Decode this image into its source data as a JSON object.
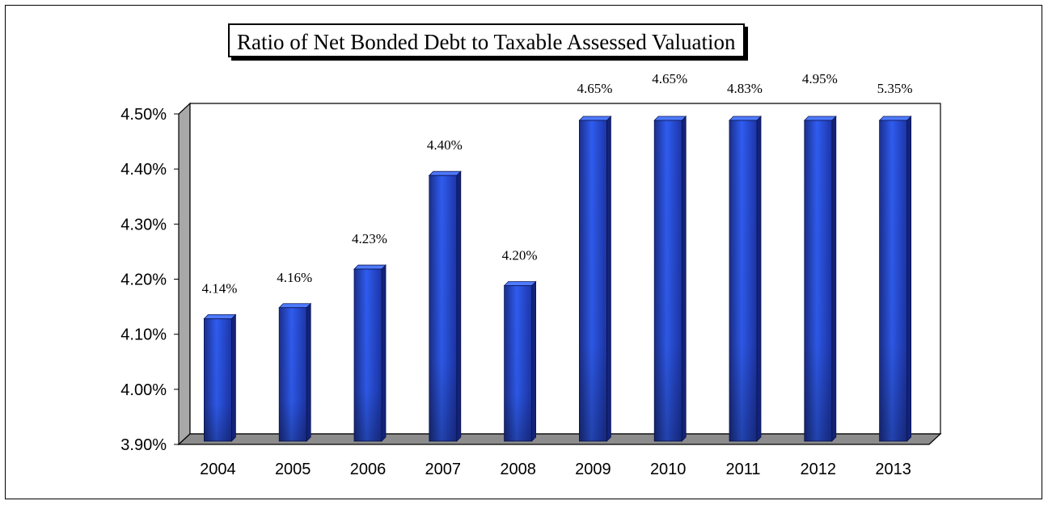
{
  "chart_data": {
    "type": "bar",
    "title": "Ratio of Net Bonded Debt to Taxable Assessed Valuation",
    "xlabel": "",
    "ylabel": "",
    "categories": [
      "2004",
      "2005",
      "2006",
      "2007",
      "2008",
      "2009",
      "2010",
      "2011",
      "2012",
      "2013"
    ],
    "values": [
      4.14,
      4.16,
      4.23,
      4.4,
      4.2,
      4.65,
      4.65,
      4.83,
      4.95,
      5.35
    ],
    "data_labels": [
      "4.14%",
      "4.16%",
      "4.23%",
      "4.40%",
      "4.20%",
      "4.65%",
      "4.65%",
      "4.83%",
      "4.95%",
      "5.35%"
    ],
    "ylim": [
      3.9,
      4.5
    ],
    "yticks": [
      3.9,
      4.0,
      4.1,
      4.2,
      4.3,
      4.4,
      4.5
    ],
    "ytick_labels": [
      "3.90%",
      "4.00%",
      "4.10%",
      "4.20%",
      "4.30%",
      "4.40%",
      "4.50%"
    ],
    "grid": false,
    "legend": "none",
    "bar_color": "#2a4fd8",
    "style": "3d"
  }
}
